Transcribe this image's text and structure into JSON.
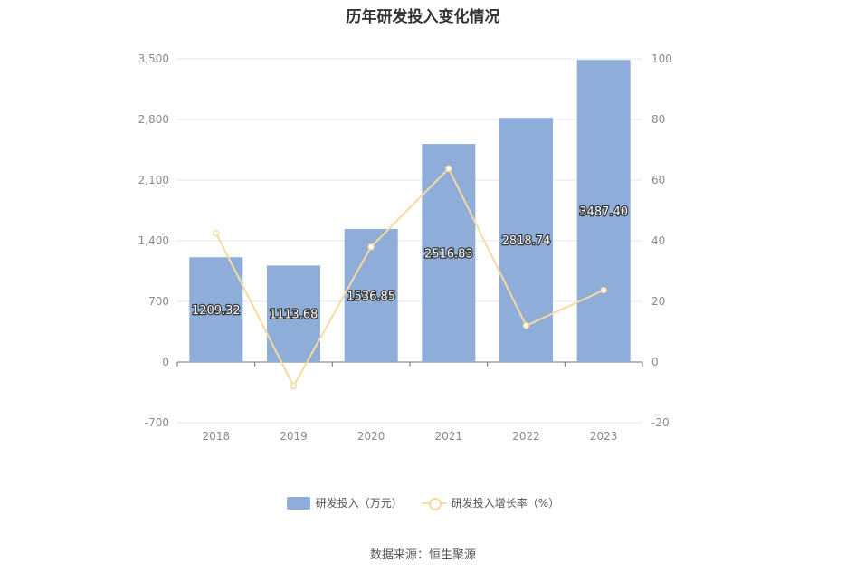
{
  "chart_data": {
    "type": "bar",
    "title": "历年研发投入变化情况",
    "categories": [
      "2018",
      "2019",
      "2020",
      "2021",
      "2022",
      "2023"
    ],
    "series": [
      {
        "name": "研发投入（万元）",
        "type": "bar",
        "axis": "left",
        "values": [
          1209.32,
          1113.68,
          1536.85,
          2516.83,
          2818.74,
          3487.4
        ],
        "labels": [
          "1209.32",
          "1113.68",
          "1536.85",
          "2516.83",
          "2818.74",
          "3487.40"
        ],
        "color": "#8eadd9"
      },
      {
        "name": "研发投入增长率（%）",
        "type": "line",
        "axis": "right",
        "values": [
          42.5,
          -7.9,
          38.0,
          63.8,
          12.0,
          23.7
        ],
        "color": "#f8d9a0"
      }
    ],
    "y_left": {
      "min": -700,
      "max": 3500,
      "ticks": [
        -700,
        0,
        700,
        1400,
        2100,
        2800,
        3500
      ],
      "tick_labels": [
        "-700",
        "0",
        "700",
        "1,400",
        "2,100",
        "2,800",
        "3,500"
      ]
    },
    "y_right": {
      "min": -20,
      "max": 100,
      "ticks": [
        -20,
        0,
        20,
        40,
        60,
        80,
        100
      ],
      "tick_labels": [
        "-20",
        "0",
        "20",
        "40",
        "60",
        "80",
        "100"
      ]
    },
    "grid": true,
    "legend_position": "bottom"
  },
  "source_text": "数据来源：恒生聚源"
}
